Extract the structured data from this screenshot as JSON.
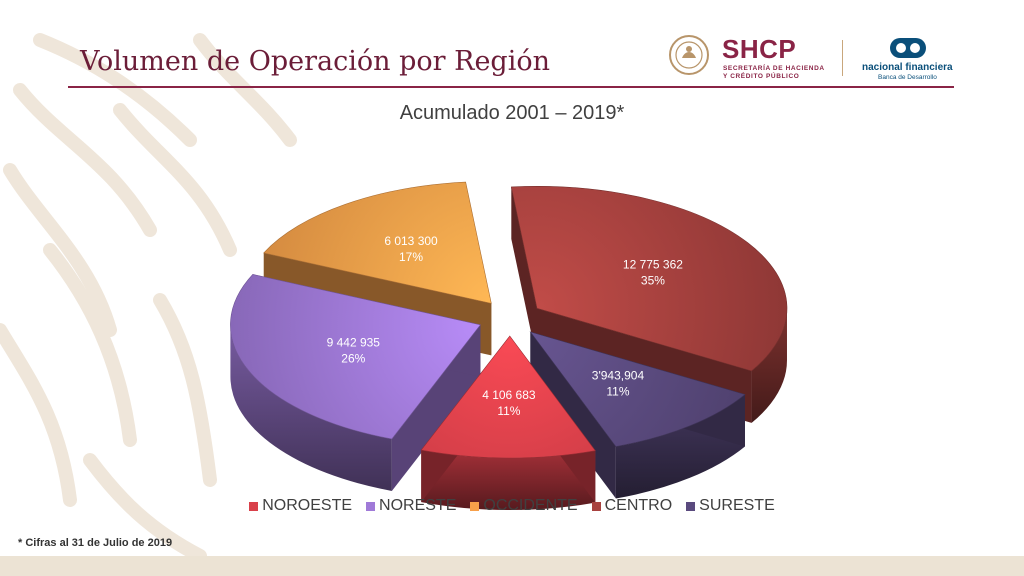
{
  "slide": {
    "title": "Volumen de Operación por Región",
    "footnote": "* Cifras al 31 de Julio de 2019"
  },
  "logos": {
    "shcp_name": "SHCP",
    "shcp_sub_line1": "SECRETARÍA DE HACIENDA",
    "shcp_sub_line2": "Y CRÉDITO PÚBLICO",
    "nafin_name": "nacional financiera",
    "nafin_sub": "Banca de Desarrollo"
  },
  "colors": {
    "title": "#6b1d38",
    "accent": "#8a2446",
    "background_band": "#ece3d4"
  },
  "chart_data": {
    "type": "pie",
    "title": "Acumulado 2001 – 2019*",
    "legend_position": "bottom",
    "slices": [
      {
        "name": "NOROESTE",
        "value": 4106683,
        "value_label": "4 106 683",
        "percent_label": "11%",
        "color": "#d9404a"
      },
      {
        "name": "NORESTE",
        "value": 9442935,
        "value_label": "9 442 935",
        "percent_label": "26%",
        "color": "#a07ad8"
      },
      {
        "name": "OCCIDENTE",
        "value": 6013300,
        "value_label": "6 013 300",
        "percent_label": "17%",
        "color": "#f7a04a"
      },
      {
        "name": "CENTRO",
        "value": 12775362,
        "value_label": "12 775 362",
        "percent_label": "35%",
        "color": "#a8423f"
      },
      {
        "name": "SURESTE",
        "value": 3943904,
        "value_label": "3'943,904",
        "percent_label": "11%",
        "color": "#5a4a7e"
      }
    ]
  }
}
